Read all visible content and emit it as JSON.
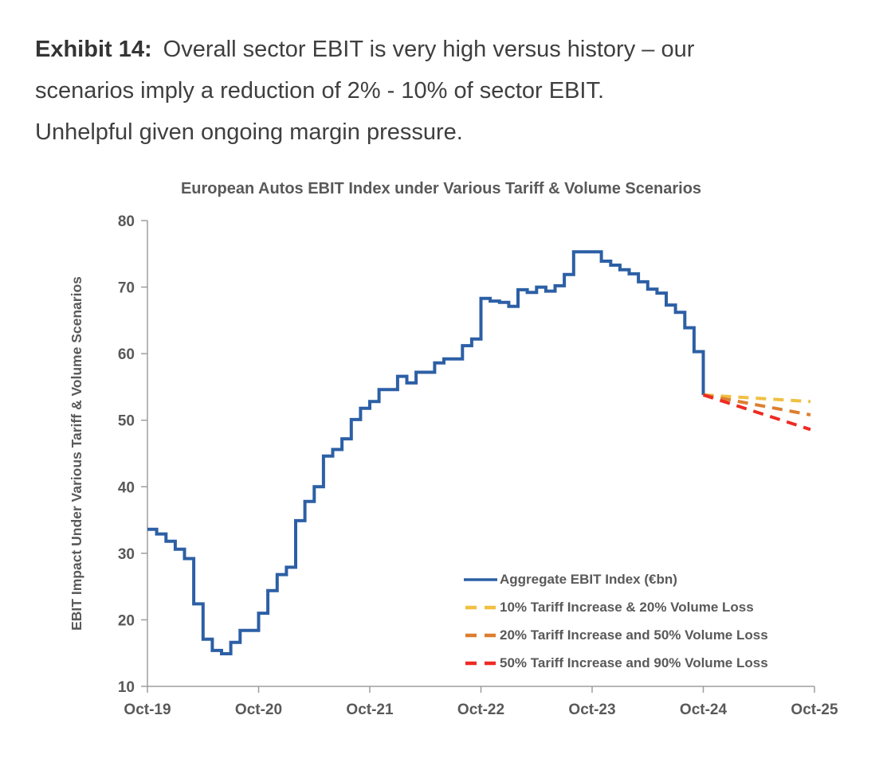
{
  "caption": {
    "exhibit_label": "Exhibit 14:",
    "line1_rest": "Overall sector EBIT is very high versus history – our",
    "line2": "scenarios imply a reduction of 2% - 10% of sector EBIT.",
    "line3": "Unhelpful given ongoing margin pressure."
  },
  "colors": {
    "caption_text": "#3f3f3f",
    "chart_text": "#595959",
    "axis": "#9d9d9d",
    "blue": "#2c5fa5",
    "yellow": "#f1bf42",
    "orange": "#dd7e30",
    "red": "#ee2b22"
  },
  "chart_data": {
    "type": "line",
    "title": "European Autos EBIT Index under Various Tariff & Volume Scenarios",
    "xlabel": "",
    "ylabel": "EBIT Impact Under Various Tariff & Volume Scenarios",
    "ylim": [
      10,
      80
    ],
    "yticks": [
      80,
      70,
      60,
      50,
      40,
      30,
      20,
      10
    ],
    "xticks": [
      "Oct-19",
      "Oct-20",
      "Oct-21",
      "Oct-22",
      "Oct-23",
      "Oct-24",
      "Oct-25"
    ],
    "months_total": 72,
    "grid": false,
    "legend_position": "lower right",
    "series": [
      {
        "name": "Aggregate EBIT Index (€bn)",
        "color": "#2c5fa5",
        "style": "solid",
        "start_month": 0,
        "x_start": "Oct-19",
        "x_end": "Oct-24",
        "values": [
          33.6,
          32.9,
          31.8,
          30.6,
          29.2,
          22.4,
          17.1,
          15.4,
          14.9,
          16.6,
          18.4,
          18.4,
          21.0,
          24.4,
          26.8,
          27.9,
          34.9,
          37.8,
          40.0,
          44.6,
          45.6,
          47.2,
          50.1,
          51.8,
          52.8,
          54.6,
          54.6,
          56.6,
          55.6,
          57.2,
          57.2,
          58.6,
          59.2,
          59.2,
          61.2,
          62.2,
          68.3,
          67.9,
          67.7,
          67.1,
          69.6,
          69.2,
          70.0,
          69.4,
          70.2,
          71.9,
          75.3,
          75.3,
          75.3,
          73.9,
          73.3,
          72.6,
          72.0,
          70.8,
          69.7,
          69.1,
          67.3,
          66.2,
          63.9,
          60.3,
          53.8
        ]
      },
      {
        "name": "10% Tariff Increase & 20% Volume Loss",
        "color": "#f1bf42",
        "style": "dashed",
        "start_month": 60,
        "x_start": "Oct-24",
        "x_end": "Oct-25",
        "values": [
          53.8,
          52.8
        ]
      },
      {
        "name": "20% Tariff Increase and 50% Volume Loss",
        "color": "#dd7e30",
        "style": "dashed",
        "start_month": 60,
        "x_start": "Oct-24",
        "x_end": "Oct-25",
        "values": [
          53.8,
          50.8
        ]
      },
      {
        "name": "50% Tariff Increase and 90% Volume Loss",
        "color": "#ee2b22",
        "style": "dashed",
        "start_month": 60,
        "x_start": "Oct-24",
        "x_end": "Oct-25",
        "values": [
          53.8,
          48.6
        ]
      }
    ]
  }
}
